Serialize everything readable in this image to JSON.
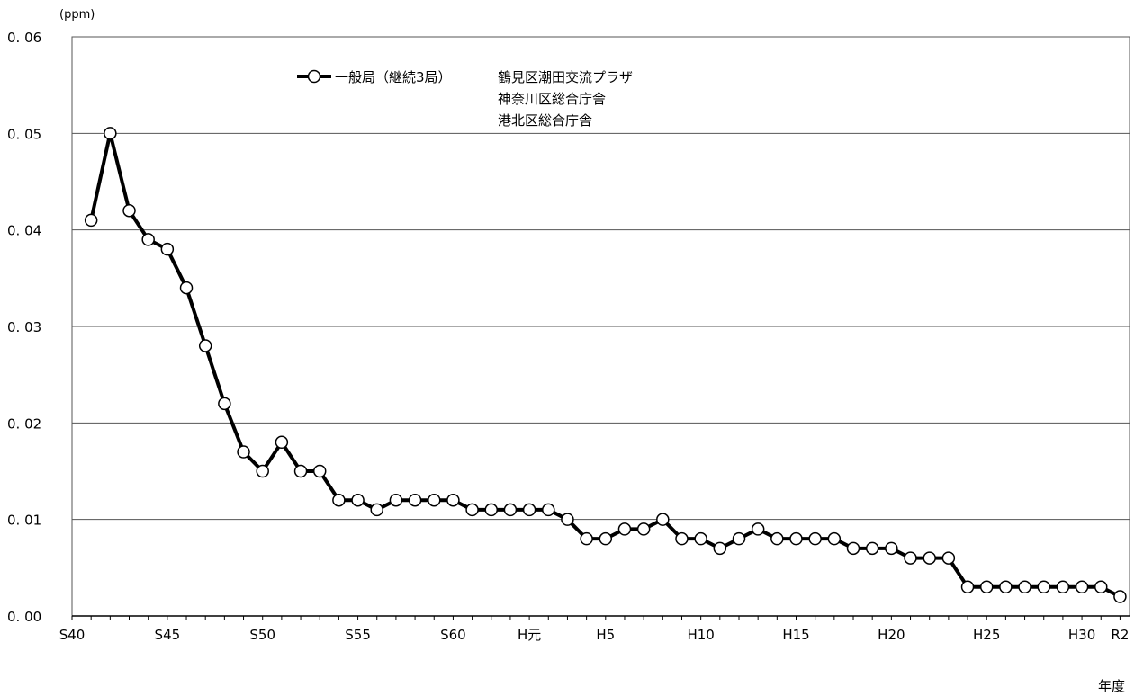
{
  "chart_data": {
    "type": "line",
    "y_unit": "(ppm)",
    "xlabel": "年度",
    "ylim": [
      0,
      0.06
    ],
    "y_ticks": [
      "0.00",
      "0.01",
      "0.02",
      "0.03",
      "0.04",
      "0.05",
      "0.06"
    ],
    "grid": "horizontal",
    "x_tick_labels": [
      {
        "year": 1965,
        "label": "S40"
      },
      {
        "year": 1970,
        "label": "S45"
      },
      {
        "year": 1975,
        "label": "S50"
      },
      {
        "year": 1980,
        "label": "S55"
      },
      {
        "year": 1985,
        "label": "S60"
      },
      {
        "year": 1989,
        "label": "H元"
      },
      {
        "year": 1993,
        "label": "H5"
      },
      {
        "year": 1998,
        "label": "H10"
      },
      {
        "year": 2003,
        "label": "H15"
      },
      {
        "year": 2008,
        "label": "H20"
      },
      {
        "year": 2013,
        "label": "H25"
      },
      {
        "year": 2018,
        "label": "H30"
      },
      {
        "year": 2020,
        "label": "R2"
      }
    ],
    "series": [
      {
        "name": "一般局（継続3局）",
        "stations": [
          "鶴見区潮田交流プラザ",
          "神奈川区総合庁舎",
          "港北区総合庁舎"
        ],
        "x": [
          1966,
          1967,
          1968,
          1969,
          1970,
          1971,
          1972,
          1973,
          1974,
          1975,
          1976,
          1977,
          1978,
          1979,
          1980,
          1981,
          1982,
          1983,
          1984,
          1985,
          1986,
          1987,
          1988,
          1989,
          1990,
          1991,
          1992,
          1993,
          1994,
          1995,
          1996,
          1997,
          1998,
          1999,
          2000,
          2001,
          2002,
          2003,
          2004,
          2005,
          2006,
          2007,
          2008,
          2009,
          2010,
          2011,
          2012,
          2013,
          2014,
          2015,
          2016,
          2017,
          2018,
          2019,
          2020
        ],
        "values": [
          0.041,
          0.05,
          0.042,
          0.039,
          0.038,
          0.034,
          0.028,
          0.022,
          0.017,
          0.015,
          0.018,
          0.015,
          0.015,
          0.012,
          0.012,
          0.011,
          0.012,
          0.012,
          0.012,
          0.012,
          0.011,
          0.011,
          0.011,
          0.011,
          0.011,
          0.01,
          0.008,
          0.008,
          0.009,
          0.009,
          0.01,
          0.008,
          0.008,
          0.007,
          0.008,
          0.009,
          0.008,
          0.008,
          0.008,
          0.008,
          0.007,
          0.007,
          0.007,
          0.006,
          0.006,
          0.006,
          0.003,
          0.003,
          0.003,
          0.003,
          0.003,
          0.003,
          0.003,
          0.003,
          0.002
        ]
      }
    ]
  }
}
